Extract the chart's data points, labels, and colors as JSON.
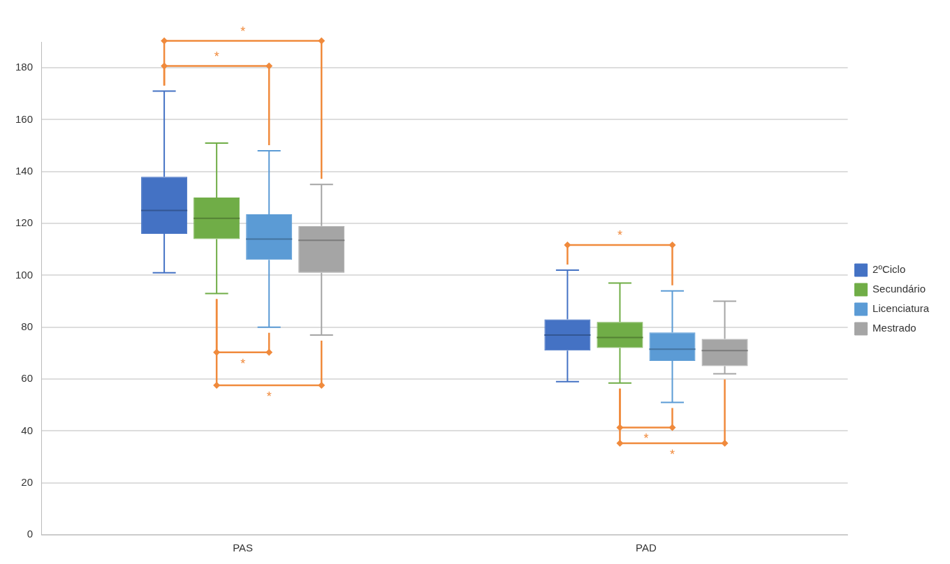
{
  "chart_data": {
    "type": "box",
    "categories": [
      "PAS",
      "PAD"
    ],
    "series": [
      {
        "name": "2ºCiclo",
        "color": "#4472c4",
        "boxes": [
          {
            "low": 101,
            "q1": 116,
            "median": 125,
            "q3": 138,
            "high": 171
          },
          {
            "low": 59,
            "q1": 71,
            "median": 77,
            "q3": 83,
            "high": 102
          }
        ]
      },
      {
        "name": "Secundário",
        "color": "#70ad47",
        "boxes": [
          {
            "low": 93,
            "q1": 114,
            "median": 122,
            "q3": 130,
            "high": 151
          },
          {
            "low": 58.5,
            "q1": 72,
            "median": 76,
            "q3": 82,
            "high": 97
          }
        ]
      },
      {
        "name": "Licenciatura",
        "color": "#5b9bd5",
        "boxes": [
          {
            "low": 80,
            "q1": 106,
            "median": 114,
            "q3": 123.5,
            "high": 148
          },
          {
            "low": 51,
            "q1": 67,
            "median": 71.5,
            "q3": 78,
            "high": 94
          }
        ]
      },
      {
        "name": "Mestrado",
        "color": "#a5a5a5",
        "boxes": [
          {
            "low": 77,
            "q1": 101,
            "median": 113.5,
            "q3": 119,
            "high": 135
          },
          {
            "low": 62,
            "q1": 65,
            "median": 71,
            "q3": 75.5,
            "high": 90
          }
        ]
      }
    ],
    "ylim": [
      0,
      190
    ],
    "yticks": [
      0,
      20,
      40,
      60,
      80,
      100,
      120,
      140,
      160,
      180
    ],
    "grid": "y",
    "legend": "right",
    "annotations": [
      "*",
      "*",
      "*",
      "*",
      "*",
      "*",
      "*"
    ]
  }
}
